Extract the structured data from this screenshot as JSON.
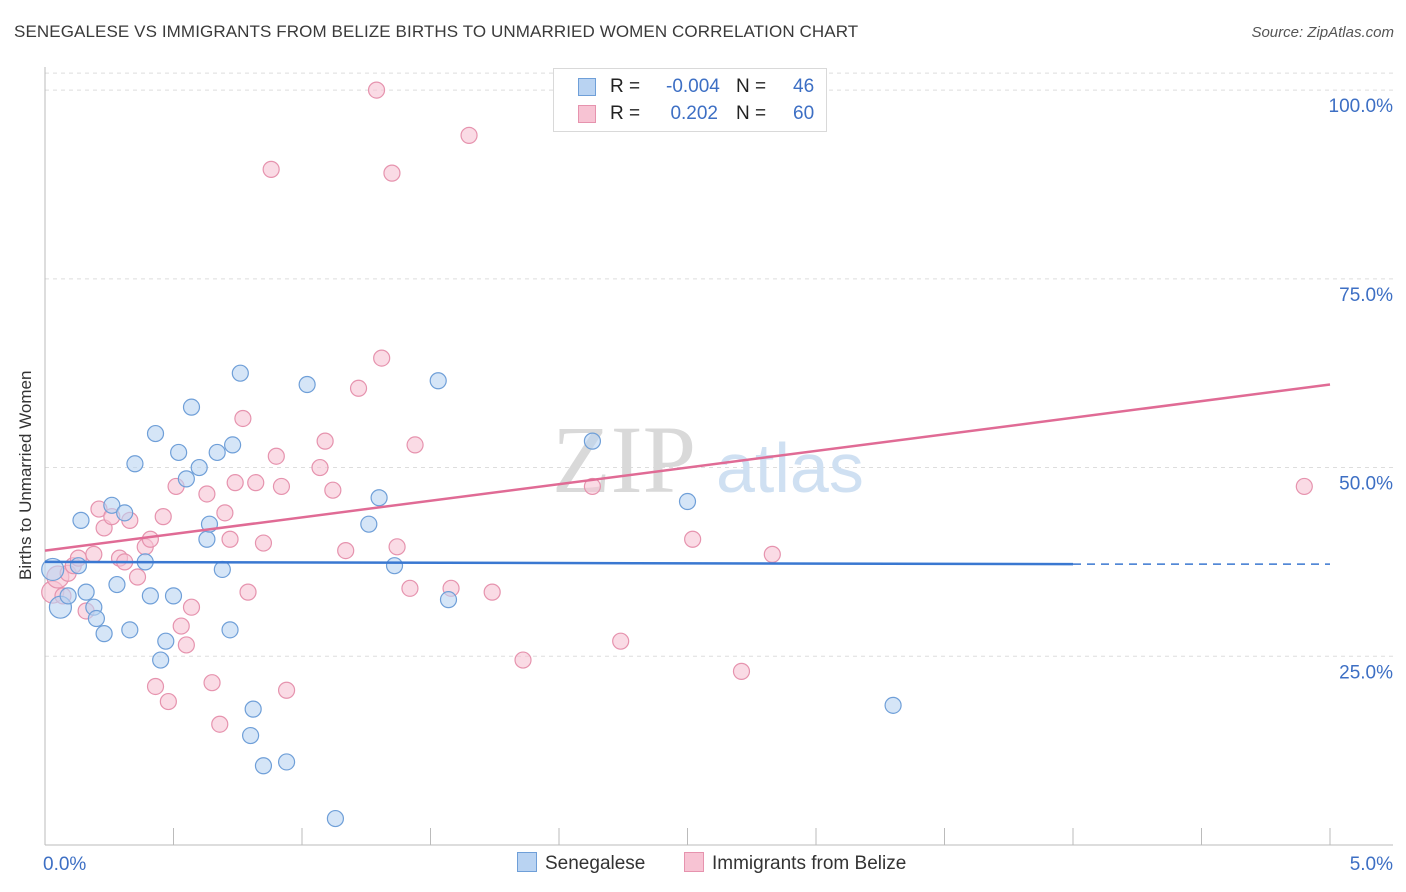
{
  "title": "SENEGALESE VS IMMIGRANTS FROM BELIZE BIRTHS TO UNMARRIED WOMEN CORRELATION CHART",
  "source": "Source: ZipAtlas.com",
  "watermark": {
    "zip": "ZIP",
    "atlas": "atlas"
  },
  "legend": {
    "senegalese": {
      "r_label": "R =",
      "r_value": "-0.004",
      "n_label": "N =",
      "n_value": "46"
    },
    "belize": {
      "r_label": "R =",
      "r_value": "0.202",
      "n_label": "N =",
      "n_value": "60"
    }
  },
  "bottom_legend": {
    "senegalese": "Senegalese",
    "belize": "Immigrants from Belize"
  },
  "colors": {
    "senegalese_fill": "#b9d3f2",
    "senegalese_stroke": "#6f9fd8",
    "senegalese_line": "#3a78d1",
    "belize_fill": "#f7c3d3",
    "belize_stroke": "#e693ae",
    "belize_line": "#e06b95",
    "tick_text": "#3d6fc4",
    "grid": "#dddddd"
  },
  "chart_data": {
    "type": "scatter",
    "title": "SENEGALESE VS IMMIGRANTS FROM BELIZE BIRTHS TO UNMARRIED WOMEN CORRELATION CHART",
    "xlabel": "",
    "ylabel": "Births to Unmarried Women",
    "xlim": [
      0,
      5.0
    ],
    "ylim": [
      0,
      102
    ],
    "x_tick_labels": [
      "0.0%",
      "5.0%"
    ],
    "y_ticks": [
      25,
      50,
      75,
      100
    ],
    "y_tick_labels": [
      "25.0%",
      "50.0%",
      "75.0%",
      "100.0%"
    ],
    "grid": true,
    "series": [
      {
        "name": "Senegalese",
        "r": -0.004,
        "n": 46,
        "trend": {
          "x0": 0,
          "y0": 37.5,
          "x1": 4.0,
          "y1": 37.2,
          "dashed_to": 5.0
        },
        "points": [
          {
            "x": 0.03,
            "y": 36.5,
            "big": true
          },
          {
            "x": 0.06,
            "y": 31.5,
            "big": true
          },
          {
            "x": 0.09,
            "y": 33.0
          },
          {
            "x": 0.13,
            "y": 37.0
          },
          {
            "x": 0.14,
            "y": 43.0
          },
          {
            "x": 0.16,
            "y": 33.5
          },
          {
            "x": 0.19,
            "y": 31.5
          },
          {
            "x": 0.2,
            "y": 30.0
          },
          {
            "x": 0.23,
            "y": 28.0
          },
          {
            "x": 0.26,
            "y": 45.0
          },
          {
            "x": 0.28,
            "y": 34.5
          },
          {
            "x": 0.31,
            "y": 44.0
          },
          {
            "x": 0.33,
            "y": 28.5
          },
          {
            "x": 0.35,
            "y": 50.5
          },
          {
            "x": 0.39,
            "y": 37.5
          },
          {
            "x": 0.41,
            "y": 33.0
          },
          {
            "x": 0.43,
            "y": 54.5
          },
          {
            "x": 0.45,
            "y": 24.5
          },
          {
            "x": 0.47,
            "y": 27.0
          },
          {
            "x": 0.5,
            "y": 33.0
          },
          {
            "x": 0.52,
            "y": 52.0
          },
          {
            "x": 0.55,
            "y": 48.5
          },
          {
            "x": 0.57,
            "y": 58.0
          },
          {
            "x": 0.6,
            "y": 50.0
          },
          {
            "x": 0.63,
            "y": 40.5
          },
          {
            "x": 0.64,
            "y": 42.5
          },
          {
            "x": 0.67,
            "y": 52.0
          },
          {
            "x": 0.69,
            "y": 36.5
          },
          {
            "x": 0.72,
            "y": 28.5
          },
          {
            "x": 0.73,
            "y": 53.0
          },
          {
            "x": 0.76,
            "y": 62.5
          },
          {
            "x": 0.8,
            "y": 14.5
          },
          {
            "x": 0.81,
            "y": 18.0
          },
          {
            "x": 0.85,
            "y": 10.5
          },
          {
            "x": 0.94,
            "y": 11.0
          },
          {
            "x": 1.02,
            "y": 61.0
          },
          {
            "x": 1.13,
            "y": 3.5
          },
          {
            "x": 1.26,
            "y": 42.5
          },
          {
            "x": 1.3,
            "y": 46.0
          },
          {
            "x": 1.36,
            "y": 37.0
          },
          {
            "x": 1.53,
            "y": 61.5
          },
          {
            "x": 1.57,
            "y": 32.5
          },
          {
            "x": 2.13,
            "y": 53.5
          },
          {
            "x": 2.5,
            "y": 45.5
          },
          {
            "x": 3.3,
            "y": 18.5
          }
        ]
      },
      {
        "name": "Immigrants from Belize",
        "r": 0.202,
        "n": 60,
        "trend": {
          "x0": 0,
          "y0": 39.0,
          "x1": 5.0,
          "y1": 61.0
        },
        "points": [
          {
            "x": 0.03,
            "y": 33.5,
            "big": true
          },
          {
            "x": 0.05,
            "y": 35.5,
            "big": true
          },
          {
            "x": 0.07,
            "y": 33.0
          },
          {
            "x": 0.09,
            "y": 36.0
          },
          {
            "x": 0.11,
            "y": 37.0
          },
          {
            "x": 0.13,
            "y": 38.0
          },
          {
            "x": 0.16,
            "y": 31.0
          },
          {
            "x": 0.19,
            "y": 38.5
          },
          {
            "x": 0.21,
            "y": 44.5
          },
          {
            "x": 0.23,
            "y": 42.0
          },
          {
            "x": 0.26,
            "y": 43.5
          },
          {
            "x": 0.29,
            "y": 38.0
          },
          {
            "x": 0.31,
            "y": 37.5
          },
          {
            "x": 0.33,
            "y": 43.0
          },
          {
            "x": 0.36,
            "y": 35.5
          },
          {
            "x": 0.39,
            "y": 39.5
          },
          {
            "x": 0.41,
            "y": 40.5
          },
          {
            "x": 0.43,
            "y": 21.0
          },
          {
            "x": 0.46,
            "y": 43.5
          },
          {
            "x": 0.48,
            "y": 19.0
          },
          {
            "x": 0.51,
            "y": 47.5
          },
          {
            "x": 0.53,
            "y": 29.0
          },
          {
            "x": 0.55,
            "y": 26.5
          },
          {
            "x": 0.57,
            "y": 31.5
          },
          {
            "x": 0.63,
            "y": 46.5
          },
          {
            "x": 0.65,
            "y": 21.5
          },
          {
            "x": 0.68,
            "y": 16.0
          },
          {
            "x": 0.7,
            "y": 44.0
          },
          {
            "x": 0.72,
            "y": 40.5
          },
          {
            "x": 0.74,
            "y": 48.0
          },
          {
            "x": 0.77,
            "y": 56.5
          },
          {
            "x": 0.79,
            "y": 33.5
          },
          {
            "x": 0.82,
            "y": 48.0
          },
          {
            "x": 0.85,
            "y": 40.0
          },
          {
            "x": 0.88,
            "y": 89.5
          },
          {
            "x": 0.9,
            "y": 51.5
          },
          {
            "x": 0.92,
            "y": 47.5
          },
          {
            "x": 0.94,
            "y": 20.5
          },
          {
            "x": 1.07,
            "y": 50.0
          },
          {
            "x": 1.09,
            "y": 53.5
          },
          {
            "x": 1.12,
            "y": 47.0
          },
          {
            "x": 1.17,
            "y": 39.0
          },
          {
            "x": 1.22,
            "y": 60.5
          },
          {
            "x": 1.29,
            "y": 100.0
          },
          {
            "x": 1.31,
            "y": 64.5
          },
          {
            "x": 1.35,
            "y": 89.0
          },
          {
            "x": 1.37,
            "y": 39.5
          },
          {
            "x": 1.42,
            "y": 34.0
          },
          {
            "x": 1.44,
            "y": 53.0
          },
          {
            "x": 1.58,
            "y": 34.0
          },
          {
            "x": 1.65,
            "y": 94.0
          },
          {
            "x": 1.74,
            "y": 33.5
          },
          {
            "x": 1.86,
            "y": 24.5
          },
          {
            "x": 2.13,
            "y": 47.5
          },
          {
            "x": 2.24,
            "y": 27.0
          },
          {
            "x": 2.52,
            "y": 40.5
          },
          {
            "x": 2.71,
            "y": 23.0
          },
          {
            "x": 2.83,
            "y": 38.5
          },
          {
            "x": 4.9,
            "y": 47.5
          }
        ]
      }
    ]
  }
}
